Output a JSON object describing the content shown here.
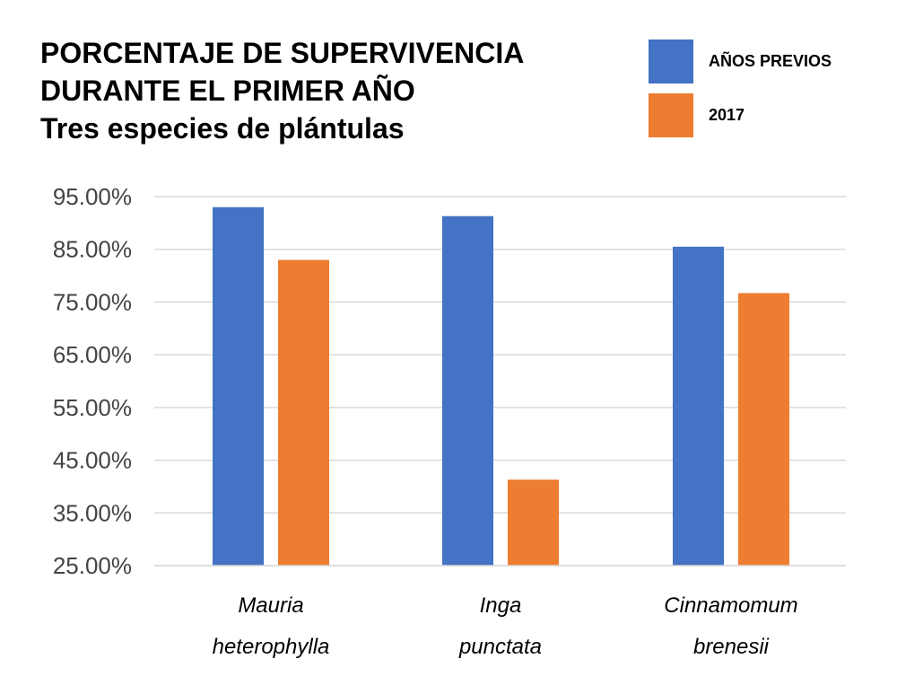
{
  "title_lines": [
    "PORCENTAJE DE SUPERVIVENCIA",
    "DURANTE EL PRIMER AÑO",
    "Tres especies de plántulas"
  ],
  "legend": [
    {
      "label": "AÑOS PREVIOS",
      "color": "#4472C4"
    },
    {
      "label": "2017",
      "color": "#ED7D31"
    }
  ],
  "chart_data": {
    "type": "bar",
    "categories": [
      [
        "Mauria",
        "heterophylla"
      ],
      [
        "Inga",
        "punctata"
      ],
      [
        "Cinnamomum",
        "brenesii"
      ]
    ],
    "series": [
      {
        "name": "AÑOS PREVIOS",
        "color": "#4472C4",
        "values": [
          93.0,
          91.3,
          85.5
        ]
      },
      {
        "name": "2017",
        "color": "#ED7D31",
        "values": [
          83.0,
          41.3,
          76.7
        ]
      }
    ],
    "ylim": [
      25,
      95
    ],
    "yticks": [
      25,
      35,
      45,
      55,
      65,
      75,
      85,
      95
    ],
    "ytick_labels": [
      "25.00%",
      "35.00%",
      "45.00%",
      "55.00%",
      "65.00%",
      "75.00%",
      "85.00%",
      "95.00%"
    ],
    "grid": true
  }
}
